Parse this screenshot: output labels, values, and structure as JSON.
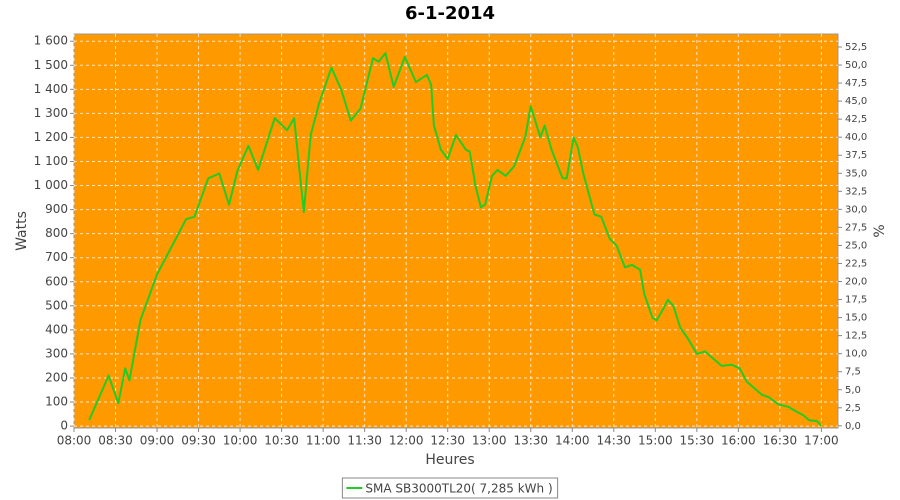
{
  "chart_data": {
    "type": "line",
    "title": "6-1-2014",
    "x_label": "Heures",
    "y_label": "Watts",
    "y2_label": "%",
    "background": "#ff9900",
    "grid": true,
    "legend": "bottom",
    "x": [
      "08:11",
      "08:25",
      "08:32",
      "08:37",
      "08:40",
      "08:48",
      "09:00",
      "09:21",
      "09:27",
      "09:37",
      "09:45",
      "09:52",
      "09:58",
      "10:06",
      "10:13",
      "10:25",
      "10:34",
      "10:39",
      "10:46",
      "10:51",
      "10:57",
      "11:06",
      "11:13",
      "11:20",
      "11:27",
      "11:36",
      "11:40",
      "11:45",
      "11:51",
      "11:59",
      "12:07",
      "12:15",
      "12:18",
      "12:20",
      "12:25",
      "12:30",
      "12:36",
      "12:43",
      "12:46",
      "12:50",
      "12:54",
      "12:57",
      "13:02",
      "13:06",
      "13:12",
      "13:18",
      "13:26",
      "13:30",
      "13:37",
      "13:40",
      "13:45",
      "13:53",
      "13:56",
      "14:01",
      "14:04",
      "14:08",
      "14:16",
      "14:21",
      "14:27",
      "14:32",
      "14:38",
      "14:43",
      "14:49",
      "14:52",
      "14:58",
      "15:01",
      "15:06",
      "15:09",
      "15:13",
      "15:18",
      "15:24",
      "15:30",
      "15:36",
      "15:42",
      "15:48",
      "15:55",
      "16:01",
      "16:06",
      "16:11",
      "16:17",
      "16:22",
      "16:29",
      "16:36",
      "16:42",
      "16:47",
      "16:51",
      "16:57",
      "17:00"
    ],
    "series": [
      {
        "name": "SMA SB3000TL20( 7,285 kWh )",
        "color": "#22cc22",
        "values": [
          25,
          210,
          95,
          240,
          190,
          440,
          630,
          860,
          870,
          1030,
          1050,
          920,
          1060,
          1165,
          1065,
          1280,
          1230,
          1280,
          890,
          1210,
          1340,
          1490,
          1400,
          1270,
          1320,
          1530,
          1515,
          1550,
          1410,
          1535,
          1430,
          1460,
          1420,
          1250,
          1150,
          1110,
          1210,
          1150,
          1140,
          1000,
          910,
          920,
          1040,
          1065,
          1040,
          1080,
          1200,
          1330,
          1200,
          1250,
          1150,
          1030,
          1030,
          1200,
          1160,
          1050,
          880,
          870,
          780,
          750,
          660,
          670,
          650,
          550,
          450,
          440,
          490,
          525,
          500,
          410,
          360,
          300,
          310,
          280,
          250,
          255,
          240,
          185,
          160,
          130,
          120,
          90,
          80,
          60,
          45,
          25,
          20,
          0
        ]
      }
    ],
    "xlim": [
      "08:00",
      "17:12"
    ],
    "xticks": [
      "08:00",
      "08:30",
      "09:00",
      "09:30",
      "10:00",
      "10:30",
      "11:00",
      "11:30",
      "12:00",
      "12:30",
      "13:00",
      "13:30",
      "14:00",
      "14:30",
      "15:00",
      "15:30",
      "16:00",
      "16:30",
      "17:00"
    ],
    "ylim": [
      -8,
      1630
    ],
    "yticks": [
      0,
      100,
      200,
      300,
      400,
      500,
      600,
      700,
      800,
      900,
      {
        "value": 1000,
        "label": "1 000"
      },
      {
        "value": 1100,
        "label": "1 100"
      },
      {
        "value": 1200,
        "label": "1 200"
      },
      {
        "value": 1300,
        "label": "1 300"
      },
      {
        "value": 1400,
        "label": "1 400"
      },
      {
        "value": 1500,
        "label": "1 500"
      },
      {
        "value": 1600,
        "label": "1 600"
      }
    ],
    "y2lim": [
      -0.3,
      54.3
    ],
    "y2ticks": [
      {
        "value": 0,
        "label": "0,0"
      },
      {
        "value": 2.5,
        "label": "2,5"
      },
      {
        "value": 5,
        "label": "5,0"
      },
      {
        "value": 7.5,
        "label": "7,5"
      },
      {
        "value": 10,
        "label": "10,0"
      },
      {
        "value": 12.5,
        "label": "12,5"
      },
      {
        "value": 15,
        "label": "15,0"
      },
      {
        "value": 17.5,
        "label": "17,5"
      },
      {
        "value": 20,
        "label": "20,0"
      },
      {
        "value": 22.5,
        "label": "22,5"
      },
      {
        "value": 25,
        "label": "25,0"
      },
      {
        "value": 27.5,
        "label": "27,5"
      },
      {
        "value": 30,
        "label": "30,0"
      },
      {
        "value": 32.5,
        "label": "32,5"
      },
      {
        "value": 35,
        "label": "35,0"
      },
      {
        "value": 37.5,
        "label": "37,5"
      },
      {
        "value": 40,
        "label": "40,0"
      },
      {
        "value": 42.5,
        "label": "42,5"
      },
      {
        "value": 45,
        "label": "45,0"
      },
      {
        "value": 47.5,
        "label": "47,5"
      },
      {
        "value": 50,
        "label": "50,0"
      },
      {
        "value": 52.5,
        "label": "52,5"
      }
    ]
  }
}
